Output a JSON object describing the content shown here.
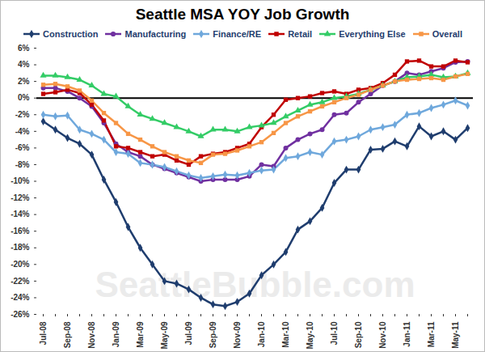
{
  "chart_data": {
    "type": "line",
    "title": "Seattle MSA YOY Job Growth",
    "annotation": "SeattleBubble.com",
    "categories": [
      "Jul-08",
      null,
      "Sep-08",
      null,
      "Nov-08",
      null,
      "Jan-09",
      null,
      "Mar-09",
      null,
      "May-09",
      null,
      "Jul-09",
      null,
      "Sep-09",
      null,
      "Nov-09",
      null,
      "Jan-10",
      null,
      "Mar-10",
      null,
      "May-10",
      null,
      "Jul-10",
      null,
      "Sep-10",
      null,
      "Nov-10",
      null,
      "Jan-11",
      null,
      "Mar-11",
      null,
      "May-11",
      null
    ],
    "series": [
      {
        "name": "Construction",
        "color": "#1f3d6e",
        "marker": "diamond",
        "values": [
          -2.8,
          -3.8,
          -4.8,
          -5.5,
          -6.8,
          -9.8,
          -12.5,
          -15.5,
          -18,
          -20,
          -22,
          -22.3,
          -23,
          -24,
          -24.8,
          -25,
          -24.5,
          -23.5,
          -21.3,
          -20,
          -18.5,
          -15.8,
          -14.8,
          -13.2,
          -10.2,
          -8.6,
          -8.6,
          -6.2,
          -6.1,
          -5.2,
          -5.8,
          -3.4,
          -4.6,
          -4,
          -5,
          -3.6
        ]
      },
      {
        "name": "Manufacturing",
        "color": "#7030a0",
        "marker": "circle",
        "values": [
          1.2,
          1.2,
          0.8,
          0,
          -1,
          -3,
          -5.5,
          -6.5,
          -7,
          -8,
          -8.5,
          -9,
          -9.5,
          -10,
          -9.8,
          -9.8,
          -9.8,
          -9.4,
          -8,
          -8.2,
          -6,
          -5,
          -4.3,
          -3.8,
          -2,
          -1.8,
          -0.5,
          0.5,
          1.5,
          2,
          3,
          2.8,
          3.2,
          3.6,
          4.3,
          4.4
        ]
      },
      {
        "name": "Finance/RE",
        "color": "#6fa8dc",
        "marker": "diamond",
        "values": [
          -2,
          -2.2,
          -2.1,
          -3.8,
          -4.3,
          -5,
          -6.5,
          -6.7,
          -7.8,
          -8,
          -8.3,
          -8.8,
          -9.3,
          -9.6,
          -9.4,
          -9.2,
          -9.3,
          -9,
          -8.7,
          -8.6,
          -7.2,
          -7,
          -6.5,
          -6.8,
          -5.2,
          -5,
          -4.6,
          -3.8,
          -3.5,
          -3.2,
          -2,
          -1.8,
          -1.2,
          -0.8,
          -0.3,
          -0.9
        ]
      },
      {
        "name": "Retail",
        "color": "#c00000",
        "marker": "square",
        "values": [
          0.5,
          0.7,
          1,
          0.6,
          -0.8,
          -2.7,
          -5.8,
          -6,
          -6.5,
          -7,
          -6.8,
          -7.5,
          -8,
          -7,
          -6.7,
          -6.5,
          -6,
          -5.5,
          -3.5,
          -2,
          -0.2,
          0,
          0.2,
          0.6,
          0.8,
          0.5,
          1,
          1.2,
          1.8,
          2.8,
          4.4,
          4.5,
          3.8,
          3.8,
          4.5,
          4.3
        ]
      },
      {
        "name": "Everything Else",
        "color": "#33cc66",
        "marker": "triangle",
        "values": [
          2.7,
          2.7,
          2.5,
          2.2,
          1.5,
          0.5,
          0.2,
          -1,
          -2,
          -2.5,
          -3,
          -3.5,
          -4,
          -4.6,
          -3.8,
          -3.8,
          -4,
          -3.5,
          -3.3,
          -3,
          -2.2,
          -1.5,
          -0.8,
          -0.5,
          0,
          0.2,
          0.5,
          1,
          1.5,
          2,
          2.5,
          2.6,
          2.8,
          2.5,
          2.6,
          3
        ]
      },
      {
        "name": "Overall",
        "color": "#f79646",
        "marker": "square",
        "values": [
          1.6,
          1.7,
          1.4,
          0.9,
          -0.3,
          -1.8,
          -3,
          -4.3,
          -5,
          -5.8,
          -6.5,
          -7,
          -7.5,
          -7.8,
          -6.8,
          -6.7,
          -6.3,
          -5.8,
          -5.3,
          -4.2,
          -3,
          -2.2,
          -1.6,
          -1,
          -0.5,
          0,
          0.4,
          1,
          1.5,
          2,
          2.2,
          2.3,
          2.4,
          2.2,
          2.6,
          2.9
        ]
      }
    ],
    "ylim": [
      -26,
      6
    ],
    "yticks": [
      {
        "value": -26,
        "label": "-26%"
      },
      {
        "value": -24,
        "label": "-24%"
      },
      {
        "value": -22,
        "label": "-22%"
      },
      {
        "value": -20,
        "label": "-20%"
      },
      {
        "value": -18,
        "label": "-18%"
      },
      {
        "value": -16,
        "label": "-16%"
      },
      {
        "value": -14,
        "label": "-14%"
      },
      {
        "value": -12,
        "label": "-12%"
      },
      {
        "value": -10,
        "label": "-10%"
      },
      {
        "value": -8,
        "label": "-8%"
      },
      {
        "value": -6,
        "label": "-6%"
      },
      {
        "value": -4,
        "label": "-4%"
      },
      {
        "value": -2,
        "label": "-2%"
      },
      {
        "value": 0,
        "label": "0%"
      },
      {
        "value": 2,
        "label": "2%"
      },
      {
        "value": 4,
        "label": "4%"
      },
      {
        "value": 6,
        "label": "6%"
      }
    ],
    "grid": false,
    "legend": "top"
  }
}
